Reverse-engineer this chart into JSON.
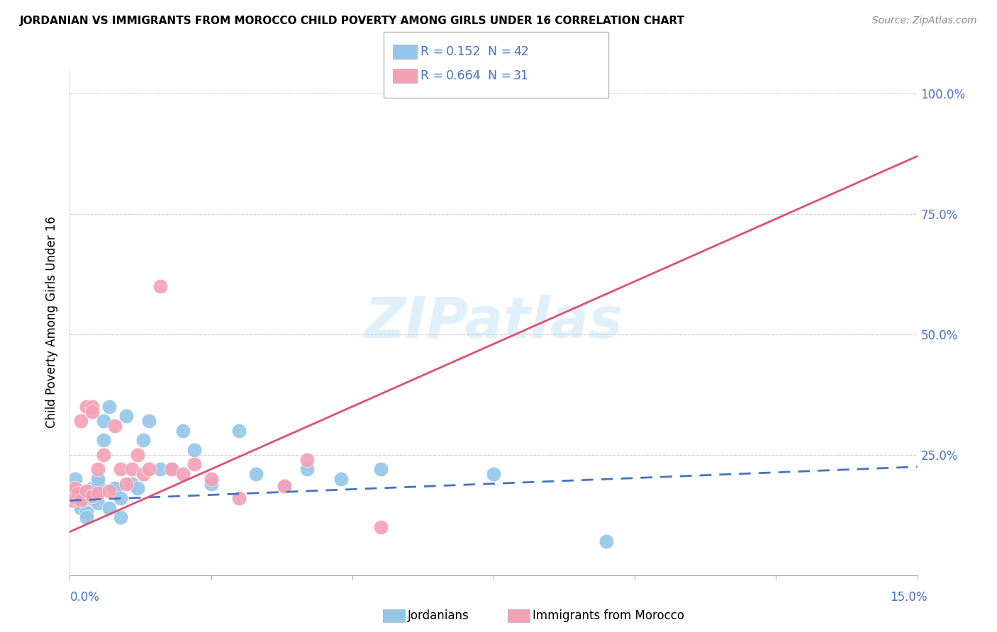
{
  "title": "JORDANIAN VS IMMIGRANTS FROM MOROCCO CHILD POVERTY AMONG GIRLS UNDER 16 CORRELATION CHART",
  "source": "Source: ZipAtlas.com",
  "ylabel": "Child Poverty Among Girls Under 16",
  "y_ticks": [
    0.0,
    0.25,
    0.5,
    0.75,
    1.0
  ],
  "y_tick_labels": [
    "",
    "25.0%",
    "50.0%",
    "75.0%",
    "100.0%"
  ],
  "x_range": [
    0.0,
    0.15
  ],
  "y_range": [
    0.0,
    1.05
  ],
  "watermark": "ZIPatlas",
  "jordanians": {
    "color": "#93c6e8",
    "line_color": "#4472c4",
    "line_style": "--",
    "trend_x": [
      0.0,
      0.15
    ],
    "trend_y": [
      0.155,
      0.225
    ],
    "x": [
      0.0005,
      0.001,
      0.001,
      0.0015,
      0.002,
      0.002,
      0.002,
      0.003,
      0.003,
      0.003,
      0.004,
      0.004,
      0.004,
      0.005,
      0.005,
      0.005,
      0.005,
      0.006,
      0.006,
      0.007,
      0.007,
      0.008,
      0.009,
      0.009,
      0.01,
      0.011,
      0.012,
      0.013,
      0.014,
      0.016,
      0.018,
      0.02,
      0.022,
      0.025,
      0.03,
      0.033,
      0.038,
      0.042,
      0.048,
      0.055,
      0.075,
      0.095
    ],
    "y": [
      0.155,
      0.18,
      0.2,
      0.16,
      0.15,
      0.14,
      0.17,
      0.13,
      0.16,
      0.12,
      0.18,
      0.175,
      0.16,
      0.17,
      0.15,
      0.19,
      0.2,
      0.28,
      0.32,
      0.35,
      0.14,
      0.18,
      0.12,
      0.16,
      0.33,
      0.19,
      0.18,
      0.28,
      0.32,
      0.22,
      0.22,
      0.3,
      0.26,
      0.19,
      0.3,
      0.21,
      0.185,
      0.22,
      0.2,
      0.22,
      0.21,
      0.07
    ]
  },
  "morocco": {
    "color": "#f4a0b5",
    "line_color": "#e05070",
    "line_style": "-",
    "trend_x": [
      0.0,
      0.15
    ],
    "trend_y": [
      0.09,
      0.87
    ],
    "x": [
      0.0005,
      0.001,
      0.001,
      0.0015,
      0.002,
      0.002,
      0.003,
      0.003,
      0.004,
      0.004,
      0.004,
      0.005,
      0.005,
      0.006,
      0.007,
      0.008,
      0.009,
      0.01,
      0.011,
      0.012,
      0.013,
      0.014,
      0.016,
      0.018,
      0.02,
      0.022,
      0.025,
      0.03,
      0.038,
      0.042,
      0.055
    ],
    "y": [
      0.155,
      0.16,
      0.18,
      0.17,
      0.155,
      0.32,
      0.35,
      0.175,
      0.35,
      0.34,
      0.165,
      0.22,
      0.17,
      0.25,
      0.175,
      0.31,
      0.22,
      0.19,
      0.22,
      0.25,
      0.21,
      0.22,
      0.6,
      0.22,
      0.21,
      0.23,
      0.2,
      0.16,
      0.185,
      0.24,
      0.1
    ]
  },
  "legend_color": "#4472c4",
  "legend_r1_val": "0.152",
  "legend_r1_n": "42",
  "legend_r2_val": "0.664",
  "legend_r2_n": "31"
}
